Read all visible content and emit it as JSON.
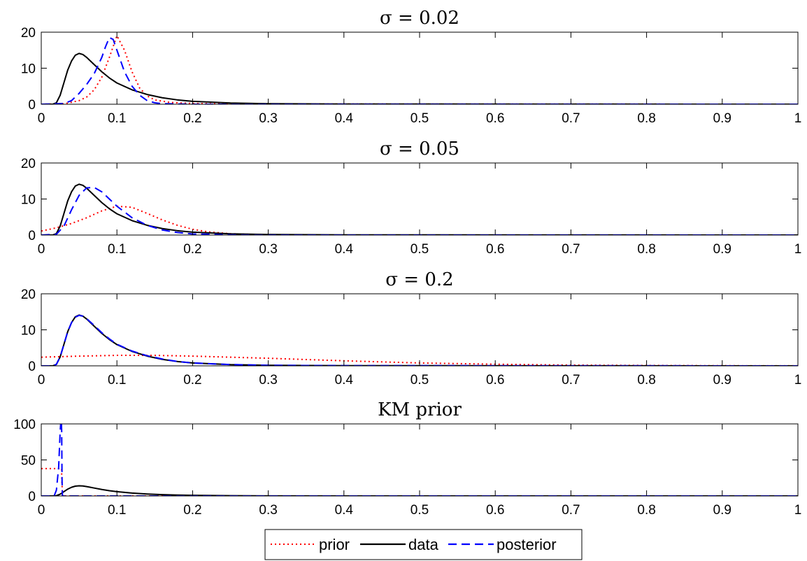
{
  "chart_data": [
    {
      "type": "line",
      "title": "σ = 0.02",
      "xlim": [
        0,
        1
      ],
      "ylim": [
        0,
        20
      ],
      "xticks": [
        "0",
        "0.1",
        "0.2",
        "0.3",
        "0.4",
        "0.5",
        "0.6",
        "0.7",
        "0.8",
        "0.9",
        "1"
      ],
      "yticks": [
        "0",
        "10",
        "20"
      ],
      "grid": false,
      "series": [
        {
          "name": "prior",
          "color": "#ff0000",
          "style": "dotted",
          "x": [
            0,
            0.03,
            0.05,
            0.06,
            0.07,
            0.08,
            0.09,
            0.1,
            0.11,
            0.12,
            0.13,
            0.14,
            0.15,
            0.17,
            0.2,
            0.25,
            1
          ],
          "y": [
            0,
            0.1,
            1.0,
            2.0,
            4.0,
            7.5,
            13.0,
            19.0,
            15.0,
            9.0,
            4.5,
            2.3,
            1.2,
            0.5,
            0.2,
            0.05,
            0
          ]
        },
        {
          "name": "data",
          "color": "#000000",
          "style": "solid",
          "x": [
            0,
            0.015,
            0.02,
            0.025,
            0.03,
            0.035,
            0.04,
            0.045,
            0.05,
            0.055,
            0.06,
            0.07,
            0.08,
            0.09,
            0.1,
            0.12,
            0.14,
            0.16,
            0.18,
            0.2,
            0.25,
            0.3,
            0.4,
            1
          ],
          "y": [
            0,
            0,
            0.4,
            2.5,
            6.0,
            9.5,
            12.0,
            13.6,
            14.1,
            13.8,
            13.0,
            11.0,
            9.0,
            7.3,
            5.9,
            4.0,
            2.7,
            1.8,
            1.2,
            0.8,
            0.35,
            0.15,
            0.05,
            0
          ]
        },
        {
          "name": "posterior",
          "color": "#0000ff",
          "style": "dashed",
          "x": [
            0,
            0.03,
            0.04,
            0.05,
            0.06,
            0.07,
            0.08,
            0.085,
            0.09,
            0.095,
            0.1,
            0.11,
            0.12,
            0.13,
            0.14,
            0.15,
            0.16,
            0.2,
            1
          ],
          "y": [
            0,
            0.2,
            1.0,
            3.0,
            5.5,
            8.5,
            13.0,
            16.0,
            18.5,
            18.0,
            15.0,
            9.0,
            5.0,
            2.5,
            1.0,
            0.4,
            0.15,
            0,
            0
          ]
        }
      ]
    },
    {
      "type": "line",
      "title": "σ = 0.05",
      "xlim": [
        0,
        1
      ],
      "ylim": [
        0,
        20
      ],
      "xticks": [
        "0",
        "0.1",
        "0.2",
        "0.3",
        "0.4",
        "0.5",
        "0.6",
        "0.7",
        "0.8",
        "0.9",
        "1"
      ],
      "yticks": [
        "0",
        "10",
        "20"
      ],
      "grid": false,
      "series": [
        {
          "name": "prior",
          "color": "#ff0000",
          "style": "dotted",
          "x": [
            0,
            0.02,
            0.04,
            0.06,
            0.08,
            0.1,
            0.12,
            0.14,
            0.16,
            0.18,
            0.2,
            0.22,
            0.25,
            0.3,
            0.35,
            1
          ],
          "y": [
            1.1,
            2.0,
            3.2,
            4.8,
            6.7,
            8.0,
            7.7,
            6.0,
            4.2,
            2.7,
            1.6,
            0.9,
            0.35,
            0.05,
            0,
            0
          ]
        },
        {
          "name": "data",
          "color": "#000000",
          "style": "solid",
          "x": [
            0,
            0.015,
            0.02,
            0.025,
            0.03,
            0.035,
            0.04,
            0.045,
            0.05,
            0.055,
            0.06,
            0.07,
            0.08,
            0.09,
            0.1,
            0.12,
            0.14,
            0.16,
            0.18,
            0.2,
            0.25,
            0.3,
            0.4,
            1
          ],
          "y": [
            0,
            0,
            0.4,
            2.5,
            6.0,
            9.5,
            12.0,
            13.6,
            14.1,
            13.8,
            13.0,
            11.0,
            9.0,
            7.3,
            5.9,
            4.0,
            2.7,
            1.8,
            1.2,
            0.8,
            0.35,
            0.15,
            0.05,
            0
          ]
        },
        {
          "name": "posterior",
          "color": "#0000ff",
          "style": "dashed",
          "x": [
            0,
            0.02,
            0.03,
            0.04,
            0.05,
            0.06,
            0.07,
            0.08,
            0.09,
            0.1,
            0.12,
            0.14,
            0.16,
            0.18,
            0.2,
            0.25,
            0.3,
            1
          ],
          "y": [
            0,
            0.2,
            2.5,
            7.0,
            11.0,
            13.1,
            13.2,
            12.0,
            10.0,
            8.0,
            4.8,
            2.7,
            1.4,
            0.7,
            0.3,
            0.05,
            0,
            0
          ]
        }
      ]
    },
    {
      "type": "line",
      "title": "σ = 0.2",
      "xlim": [
        0,
        1
      ],
      "ylim": [
        0,
        20
      ],
      "xticks": [
        "0",
        "0.1",
        "0.2",
        "0.3",
        "0.4",
        "0.5",
        "0.6",
        "0.7",
        "0.8",
        "0.9",
        "1"
      ],
      "yticks": [
        "0",
        "10",
        "20"
      ],
      "grid": false,
      "series": [
        {
          "name": "prior",
          "color": "#ff0000",
          "style": "dotted",
          "x": [
            0,
            0.05,
            0.1,
            0.15,
            0.2,
            0.3,
            0.4,
            0.5,
            0.6,
            0.7,
            0.8,
            0.9,
            1
          ],
          "y": [
            2.4,
            2.7,
            2.9,
            2.9,
            2.7,
            2.1,
            1.4,
            0.8,
            0.45,
            0.2,
            0.1,
            0.04,
            0.02
          ]
        },
        {
          "name": "data",
          "color": "#000000",
          "style": "solid",
          "x": [
            0,
            0.015,
            0.02,
            0.025,
            0.03,
            0.035,
            0.04,
            0.045,
            0.05,
            0.055,
            0.06,
            0.07,
            0.08,
            0.09,
            0.1,
            0.12,
            0.14,
            0.16,
            0.18,
            0.2,
            0.25,
            0.3,
            0.4,
            1
          ],
          "y": [
            0,
            0,
            0.4,
            2.5,
            6.0,
            9.5,
            12.0,
            13.6,
            14.1,
            13.8,
            13.0,
            11.0,
            9.0,
            7.3,
            5.9,
            4.0,
            2.7,
            1.8,
            1.2,
            0.8,
            0.35,
            0.15,
            0.05,
            0
          ]
        },
        {
          "name": "posterior",
          "color": "#0000ff",
          "style": "dashed",
          "x": [
            0,
            0.015,
            0.02,
            0.025,
            0.03,
            0.035,
            0.04,
            0.045,
            0.05,
            0.055,
            0.06,
            0.07,
            0.08,
            0.09,
            0.1,
            0.12,
            0.14,
            0.16,
            0.18,
            0.2,
            0.25,
            0.3,
            0.4,
            1
          ],
          "y": [
            0,
            0,
            0.4,
            2.5,
            6.0,
            9.5,
            12.0,
            13.5,
            14.0,
            13.8,
            13.1,
            11.2,
            9.2,
            7.5,
            6.0,
            4.1,
            2.8,
            1.9,
            1.2,
            0.8,
            0.35,
            0.15,
            0.05,
            0
          ]
        }
      ]
    },
    {
      "type": "line",
      "title": "KM prior",
      "xlim": [
        0,
        1
      ],
      "ylim": [
        0,
        100
      ],
      "xticks": [
        "0",
        "0.1",
        "0.2",
        "0.3",
        "0.4",
        "0.5",
        "0.6",
        "0.7",
        "0.8",
        "0.9",
        "1"
      ],
      "yticks": [
        "0",
        "50",
        "100"
      ],
      "grid": false,
      "series": [
        {
          "name": "prior",
          "color": "#ff0000",
          "style": "dotted",
          "x": [
            0,
            0.027,
            0.027,
            0.028,
            1
          ],
          "y": [
            38,
            38,
            30,
            0,
            0
          ]
        },
        {
          "name": "data",
          "color": "#000000",
          "style": "solid",
          "x": [
            0,
            0.015,
            0.02,
            0.025,
            0.03,
            0.035,
            0.04,
            0.045,
            0.05,
            0.055,
            0.06,
            0.07,
            0.08,
            0.09,
            0.1,
            0.12,
            0.14,
            0.16,
            0.18,
            0.2,
            0.25,
            0.3,
            0.4,
            1
          ],
          "y": [
            0,
            0,
            0.4,
            2.5,
            6.0,
            9.5,
            12.0,
            13.6,
            14.1,
            13.8,
            13.0,
            11.0,
            9.0,
            7.3,
            5.9,
            4.0,
            2.7,
            1.8,
            1.2,
            0.8,
            0.35,
            0.15,
            0.05,
            0
          ]
        },
        {
          "name": "posterior",
          "color": "#0000ff",
          "style": "dashed",
          "x": [
            0,
            0.017,
            0.02,
            0.023,
            0.025,
            0.026,
            0.0265,
            0.027,
            0.0275,
            0.028,
            0.03,
            1
          ],
          "y": [
            0,
            0,
            8,
            40,
            90,
            105,
            105,
            90,
            20,
            0,
            0,
            0
          ]
        }
      ]
    }
  ],
  "legend": {
    "placement": "bottom-center",
    "entries": [
      "prior",
      "data",
      "posterior"
    ]
  }
}
